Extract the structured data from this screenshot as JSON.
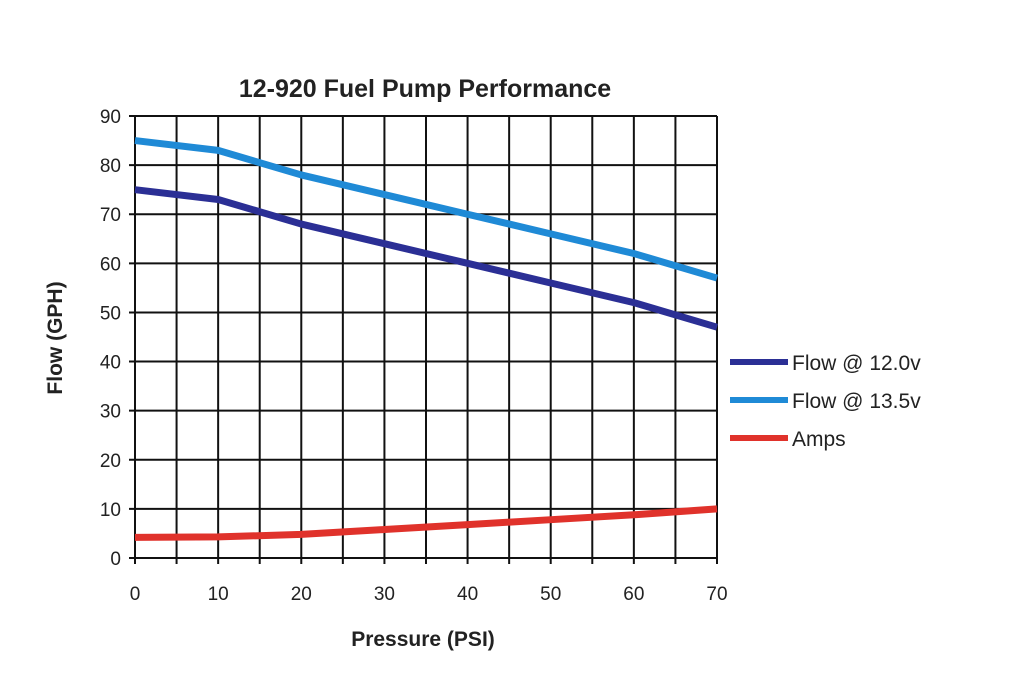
{
  "chart_data": {
    "type": "line",
    "title": "12-920 Fuel Pump Performance",
    "xlabel": "Pressure (PSI)",
    "ylabel": "Flow (GPH)",
    "xlim": [
      0,
      70
    ],
    "ylim": [
      0,
      90
    ],
    "x_ticks": [
      0,
      10,
      20,
      30,
      40,
      50,
      60,
      70
    ],
    "y_ticks": [
      0,
      10,
      20,
      30,
      40,
      50,
      60,
      70,
      80,
      90
    ],
    "x_grid_step": 5,
    "y_grid_step": 10,
    "grid": true,
    "legend_position": "right",
    "x": [
      0,
      10,
      20,
      30,
      40,
      50,
      60,
      70
    ],
    "series": [
      {
        "name": "Flow @ 12.0v",
        "color": "#2b2f95",
        "values": [
          75,
          73,
          68,
          64,
          60,
          56,
          52,
          47
        ]
      },
      {
        "name": "Flow @ 13.5v",
        "color": "#1f8ad6",
        "values": [
          85,
          83,
          78,
          74,
          70,
          66,
          62,
          57
        ]
      },
      {
        "name": "Amps",
        "color": "#e0322b",
        "values": [
          4.2,
          4.3,
          4.8,
          5.8,
          6.8,
          7.8,
          8.8,
          10
        ]
      }
    ]
  }
}
